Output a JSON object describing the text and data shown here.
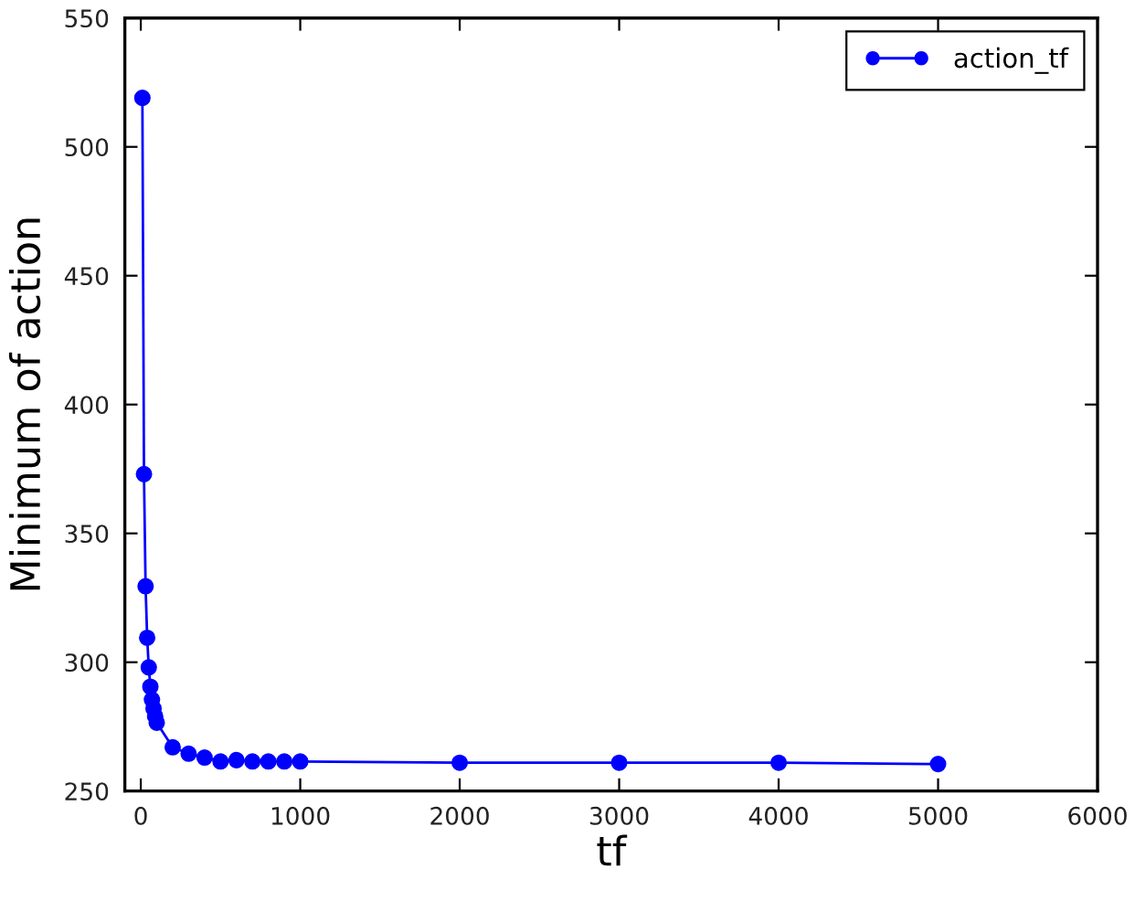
{
  "chart_data": {
    "type": "line",
    "xlabel": "tf",
    "ylabel": "Minimum of action",
    "x": [
      10,
      20,
      30,
      40,
      50,
      60,
      70,
      80,
      90,
      100,
      200,
      300,
      400,
      500,
      600,
      700,
      800,
      900,
      1000,
      2000,
      3000,
      4000,
      5000
    ],
    "series": [
      {
        "name": "action_tf",
        "color": "#0000ff",
        "values": [
          519,
          373,
          329.5,
          309.5,
          298,
          290.5,
          285.5,
          282,
          279,
          276.5,
          267,
          264.5,
          263,
          261.5,
          262,
          261.5,
          261.5,
          261.5,
          261.5,
          261,
          261,
          261,
          260.5
        ]
      }
    ],
    "xlim": [
      -100,
      6000
    ],
    "xticks": [
      0,
      1000,
      2000,
      3000,
      4000,
      5000,
      6000
    ],
    "ylim": [
      250,
      550
    ],
    "yticks": [
      250,
      300,
      350,
      400,
      450,
      500,
      550
    ],
    "grid": false,
    "legend": "top right",
    "marker": "circle",
    "line_style": "solid"
  }
}
